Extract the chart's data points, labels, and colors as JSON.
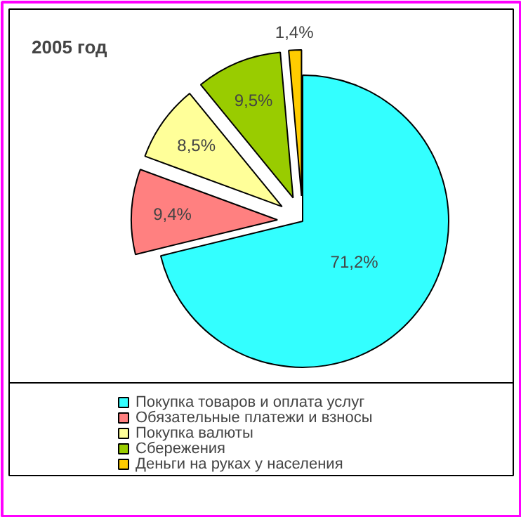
{
  "chart_data": {
    "type": "pie",
    "title": "2005 год",
    "categories": [
      "Покупка товаров и оплата услуг",
      "Обязательные платежи и взносы",
      "Покупка валюты",
      "Сбережения",
      "Деньги на руках у населения"
    ],
    "values": [
      71.2,
      9.4,
      8.5,
      9.5,
      1.4
    ],
    "value_labels": [
      "71,2%",
      "9,4%",
      "8,5%",
      "9,5%",
      "1,4%"
    ],
    "colors": [
      "#33ffff",
      "#ff8080",
      "#ffff99",
      "#99cc00",
      "#ffcc00"
    ],
    "legend": "bottom"
  }
}
